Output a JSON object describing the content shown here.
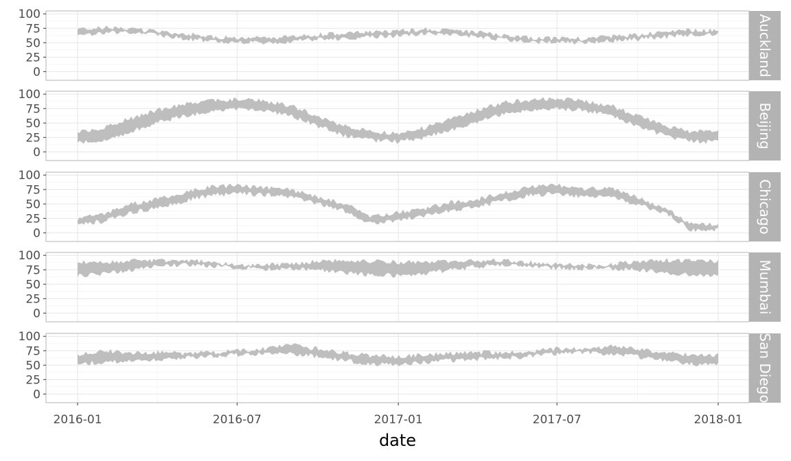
{
  "chart_data": {
    "type": "area",
    "subtype": "ribbon (daily min-max band) in faceted panels",
    "xlabel": "date",
    "ylabel": "",
    "x_ticks": [
      "2016-01",
      "2016-07",
      "2017-01",
      "2017-07",
      "2018-01"
    ],
    "y_ticks": [
      0,
      25,
      50,
      75,
      100
    ],
    "ylim": [
      -15,
      105
    ],
    "xlim": [
      "2016-01-01",
      "2017-12-31"
    ],
    "grid": true,
    "legend": "none",
    "colors": {
      "ribbon": "#bebebe",
      "strip_bg": "#b3b3b3",
      "strip_text": "#ffffff",
      "grid": "#e6e6e6",
      "panel_border": "#b3b3b3"
    },
    "series": [
      {
        "name": "Auckland",
        "x": [
          "2016-01",
          "2016-02",
          "2016-03",
          "2016-04",
          "2016-05",
          "2016-06",
          "2016-07",
          "2016-08",
          "2016-09",
          "2016-10",
          "2016-11",
          "2016-12",
          "2017-01",
          "2017-02",
          "2017-03",
          "2017-04",
          "2017-05",
          "2017-06",
          "2017-07",
          "2017-08",
          "2017-09",
          "2017-10",
          "2017-11",
          "2017-12"
        ],
        "low": [
          62,
          68,
          67,
          63,
          58,
          52,
          50,
          50,
          52,
          56,
          58,
          60,
          62,
          65,
          64,
          60,
          56,
          52,
          50,
          50,
          53,
          56,
          60,
          64
        ],
        "high": [
          72,
          76,
          74,
          70,
          66,
          60,
          58,
          58,
          60,
          64,
          66,
          68,
          70,
          73,
          72,
          68,
          63,
          59,
          57,
          57,
          61,
          64,
          68,
          72
        ]
      },
      {
        "name": "Beijing",
        "x": [
          "2016-01",
          "2016-02",
          "2016-03",
          "2016-04",
          "2016-05",
          "2016-06",
          "2016-07",
          "2016-08",
          "2016-09",
          "2016-10",
          "2016-11",
          "2016-12",
          "2017-01",
          "2017-02",
          "2017-03",
          "2017-04",
          "2017-05",
          "2017-06",
          "2017-07",
          "2017-08",
          "2017-09",
          "2017-10",
          "2017-11",
          "2017-12"
        ],
        "low": [
          15,
          20,
          35,
          50,
          62,
          70,
          75,
          72,
          62,
          45,
          28,
          20,
          18,
          25,
          38,
          52,
          65,
          72,
          75,
          72,
          62,
          45,
          28,
          18
        ],
        "high": [
          35,
          42,
          58,
          72,
          82,
          88,
          92,
          88,
          80,
          62,
          45,
          35,
          32,
          42,
          58,
          72,
          85,
          90,
          92,
          88,
          80,
          62,
          45,
          35
        ]
      },
      {
        "name": "Chicago",
        "x": [
          "2016-01",
          "2016-02",
          "2016-03",
          "2016-04",
          "2016-05",
          "2016-06",
          "2016-07",
          "2016-08",
          "2016-09",
          "2016-10",
          "2016-11",
          "2016-12",
          "2017-01",
          "2017-02",
          "2017-03",
          "2017-04",
          "2017-05",
          "2017-06",
          "2017-07",
          "2017-08",
          "2017-09",
          "2017-10",
          "2017-11",
          "2017-12"
        ],
        "low": [
          15,
          20,
          35,
          42,
          55,
          65,
          68,
          66,
          62,
          50,
          38,
          15,
          22,
          30,
          38,
          45,
          55,
          65,
          68,
          62,
          62,
          48,
          35,
          5
        ],
        "high": [
          25,
          32,
          50,
          58,
          70,
          80,
          82,
          78,
          74,
          62,
          50,
          28,
          35,
          42,
          52,
          58,
          70,
          80,
          82,
          76,
          78,
          62,
          42,
          15
        ]
      },
      {
        "name": "Mumbai",
        "x": [
          "2016-01",
          "2016-02",
          "2016-03",
          "2016-04",
          "2016-05",
          "2016-06",
          "2016-07",
          "2016-08",
          "2016-09",
          "2016-10",
          "2016-11",
          "2016-12",
          "2017-01",
          "2017-02",
          "2017-03",
          "2017-04",
          "2017-05",
          "2017-06",
          "2017-07",
          "2017-08",
          "2017-09",
          "2017-10",
          "2017-11",
          "2017-12"
        ],
        "low": [
          65,
          68,
          75,
          80,
          84,
          82,
          78,
          77,
          77,
          75,
          70,
          66,
          65,
          68,
          75,
          80,
          84,
          82,
          78,
          77,
          77,
          75,
          70,
          66
        ],
        "high": [
          88,
          88,
          90,
          91,
          92,
          88,
          84,
          83,
          84,
          90,
          92,
          90,
          88,
          88,
          90,
          91,
          92,
          88,
          84,
          83,
          84,
          90,
          92,
          90
        ]
      },
      {
        "name": "San Diego",
        "x": [
          "2016-01",
          "2016-02",
          "2016-03",
          "2016-04",
          "2016-05",
          "2016-06",
          "2016-07",
          "2016-08",
          "2016-09",
          "2016-10",
          "2016-11",
          "2016-12",
          "2017-01",
          "2017-02",
          "2017-03",
          "2017-04",
          "2017-05",
          "2017-06",
          "2017-07",
          "2017-08",
          "2017-09",
          "2017-10",
          "2017-11",
          "2017-12"
        ],
        "low": [
          52,
          55,
          58,
          60,
          62,
          65,
          68,
          70,
          70,
          65,
          58,
          52,
          50,
          55,
          58,
          60,
          62,
          65,
          70,
          72,
          70,
          65,
          58,
          52
        ],
        "high": [
          68,
          75,
          72,
          72,
          70,
          72,
          76,
          78,
          85,
          78,
          72,
          66,
          64,
          68,
          70,
          72,
          72,
          74,
          78,
          80,
          82,
          78,
          72,
          68
        ]
      }
    ]
  }
}
